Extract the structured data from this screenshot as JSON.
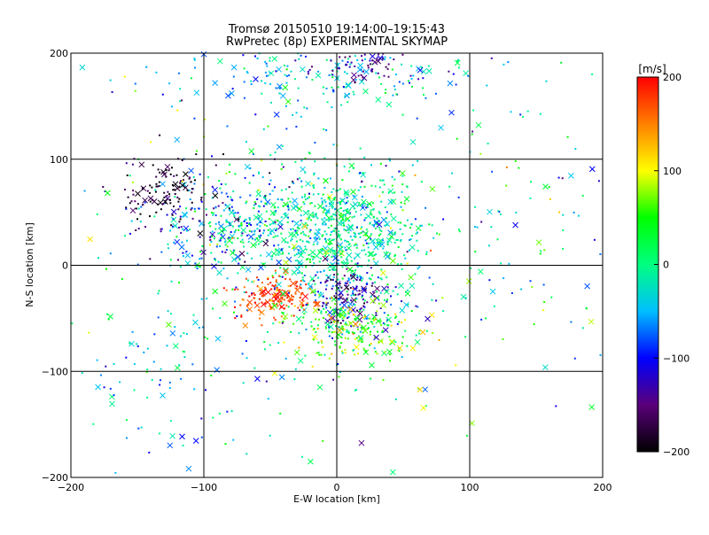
{
  "chart_data": {
    "type": "scatter",
    "title_line1": "Tromsø 20150510 19:14:00–19:15:43",
    "title_line2": "RwPretec (8p) EXPERIMENTAL SKYMAP",
    "xlabel": "E-W location [km]",
    "ylabel": "N-S location [km]",
    "xlim": [
      -200,
      200
    ],
    "ylim": [
      -200,
      200
    ],
    "xticks": [
      -200,
      -100,
      0,
      100,
      200
    ],
    "yticks": [
      -200,
      -100,
      0,
      100,
      200
    ],
    "grid": true,
    "markers": [
      "dot",
      "cross"
    ],
    "clusters": [
      {
        "cx": 0,
        "cy": 30,
        "sx": 35,
        "sy": 30,
        "n": 700,
        "v": -10,
        "vs": 35
      },
      {
        "cx": -80,
        "cy": 40,
        "sx": 30,
        "sy": 25,
        "n": 300,
        "v": -60,
        "vs": 60
      },
      {
        "cx": -130,
        "cy": 70,
        "sx": 18,
        "sy": 20,
        "n": 120,
        "v": -180,
        "vs": 25
      },
      {
        "cx": -45,
        "cy": -30,
        "sx": 15,
        "sy": 10,
        "n": 160,
        "v": 175,
        "vs": 25
      },
      {
        "cx": 10,
        "cy": -30,
        "sx": 15,
        "sy": 15,
        "n": 170,
        "v": -120,
        "vs": 40
      },
      {
        "cx": 10,
        "cy": -60,
        "sx": 25,
        "sy": 15,
        "n": 220,
        "v": 60,
        "vs": 40
      },
      {
        "cx": -10,
        "cy": 180,
        "sx": 60,
        "sy": 18,
        "n": 220,
        "v": -40,
        "vs": 40
      },
      {
        "cx": 20,
        "cy": 190,
        "sx": 15,
        "sy": 8,
        "n": 60,
        "v": -140,
        "vs": 20
      },
      {
        "cx": -120,
        "cy": -100,
        "sx": 40,
        "sy": 45,
        "n": 100,
        "v": -50,
        "vs": 40
      },
      {
        "cx": 20,
        "cy": 40,
        "sx": 110,
        "sy": 80,
        "n": 250,
        "v": -10,
        "vs": 60
      },
      {
        "cx": 0,
        "cy": 0,
        "sx": 150,
        "sy": 130,
        "n": 180,
        "v": 0,
        "vs": 80
      }
    ],
    "colorbar": {
      "label": "[m/s]",
      "min": -200,
      "max": 200,
      "ticks": [
        200,
        100,
        0,
        -100,
        -200
      ],
      "colors": [
        "#000000",
        "#5a007a",
        "#0000ff",
        "#00bfff",
        "#00ff80",
        "#00ff00",
        "#ffff00",
        "#ff8000",
        "#ff0000"
      ]
    }
  }
}
